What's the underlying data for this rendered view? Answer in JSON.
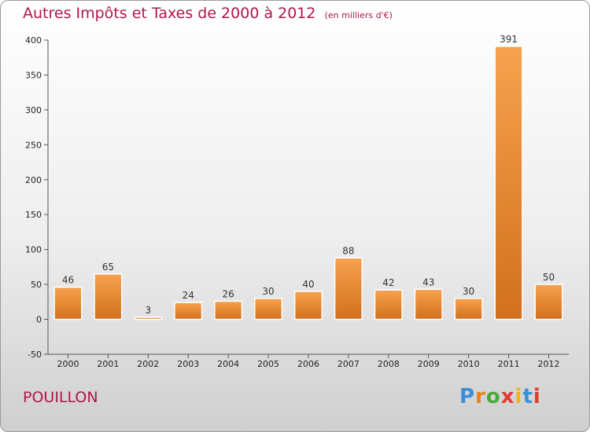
{
  "chart_data": {
    "type": "bar",
    "title": "Autres Impôts et Taxes de 2000 à 2012",
    "subtitle": "(en milliers d'€)",
    "categories": [
      "2000",
      "2001",
      "2002",
      "2003",
      "2004",
      "2005",
      "2006",
      "2007",
      "2008",
      "2009",
      "2010",
      "2011",
      "2012"
    ],
    "values": [
      46,
      65,
      3,
      24,
      26,
      30,
      40,
      88,
      42,
      43,
      30,
      391,
      50
    ],
    "ylim": [
      -50,
      400
    ],
    "yticks": [
      -50,
      0,
      50,
      100,
      150,
      200,
      250,
      300,
      350,
      400
    ],
    "grid": false,
    "colors": {
      "bar_light": "#f7a24e",
      "bar_dark": "#d1701d",
      "title": "#b0164a"
    }
  },
  "footer": {
    "commune": "POUILLON",
    "logo_text": "Proxiti",
    "logo_colors": [
      "#3a8fd6",
      "#e5821f",
      "#4aa83a",
      "#e23b2e",
      "#f0b21d",
      "#3a8fd6",
      "#e23b2e"
    ]
  }
}
